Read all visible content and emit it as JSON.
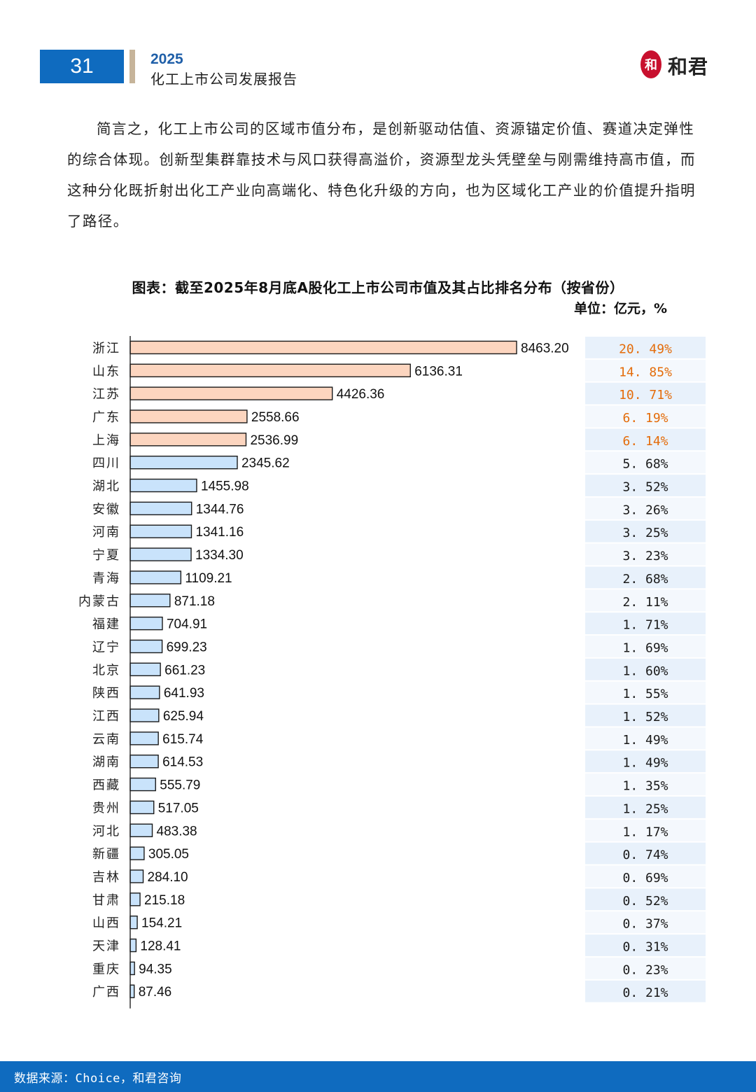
{
  "header": {
    "page_number": "31",
    "year": "2025",
    "title": "化工上市公司发展报告",
    "logo_text": "和君",
    "logo_seal_char": "和"
  },
  "body": {
    "paragraph": "简言之，化工上市公司的区域市值分布，是创新驱动估值、资源锚定价值、赛道决定弹性的综合体现。创新型集群靠技术与风口获得高溢价，资源型龙头凭壁垒与刚需维持高市值，而这种分化既折射出化工产业向高端化、特色化升级的方向，也为区域化工产业的价值提升指明了路径。"
  },
  "chart_data": {
    "type": "bar",
    "orientation": "horizontal",
    "title": "图表：截至2025年8月底A股化工上市公司市值及其占比排名分布（按省份）",
    "unit": "单位：亿元，%",
    "categories": [
      "浙江",
      "山东",
      "江苏",
      "广东",
      "上海",
      "四川",
      "湖北",
      "安徽",
      "河南",
      "宁夏",
      "青海",
      "内蒙古",
      "福建",
      "辽宁",
      "北京",
      "陕西",
      "江西",
      "云南",
      "湖南",
      "西藏",
      "贵州",
      "河北",
      "新疆",
      "吉林",
      "甘肃",
      "山西",
      "天津",
      "重庆",
      "广西"
    ],
    "values": [
      8463.2,
      6136.31,
      4426.36,
      2558.66,
      2536.99,
      2345.62,
      1455.98,
      1344.76,
      1341.16,
      1334.3,
      1109.21,
      871.18,
      704.91,
      699.23,
      661.23,
      641.93,
      625.94,
      615.74,
      614.53,
      555.79,
      517.05,
      483.38,
      305.05,
      284.1,
      215.18,
      154.21,
      128.41,
      94.35,
      87.46
    ],
    "value_labels": [
      "8463.20",
      "6136.31",
      "4426.36",
      "2558.66",
      "2536.99",
      "2345.62",
      "1455.98",
      "1344.76",
      "1341.16",
      "1334.30",
      "1109.21",
      "871.18",
      "704.91",
      "699.23",
      "661.23",
      "641.93",
      "625.94",
      "615.74",
      "614.53",
      "555.79",
      "517.05",
      "483.38",
      "305.05",
      "284.10",
      "215.18",
      "154.21",
      "128.41",
      "94.35",
      "87.46"
    ],
    "shares": [
      "20.49%",
      "14.85%",
      "10.71%",
      "6.19%",
      "6.14%",
      "5.68%",
      "3.52%",
      "3.26%",
      "3.25%",
      "3.23%",
      "2.68%",
      "2.11%",
      "1.71%",
      "1.69%",
      "1.60%",
      "1.55%",
      "1.52%",
      "1.49%",
      "1.49%",
      "1.35%",
      "1.25%",
      "1.17%",
      "0.74%",
      "0.69%",
      "0.52%",
      "0.37%",
      "0.31%",
      "0.23%",
      "0.21%"
    ],
    "highlight_top_n": 5,
    "colors": {
      "top_bar": "#fcd5bf",
      "other_bar": "#c9e3fb",
      "bar_stroke": "#1a1a1a",
      "top_share_text": "#e46c0a",
      "other_share_text": "#1a1a1a",
      "share_bg_a": "#e8f1fb",
      "share_bg_b": "#f4f8fd"
    }
  },
  "footer": {
    "source": "数据来源：Choice，和君咨询"
  }
}
